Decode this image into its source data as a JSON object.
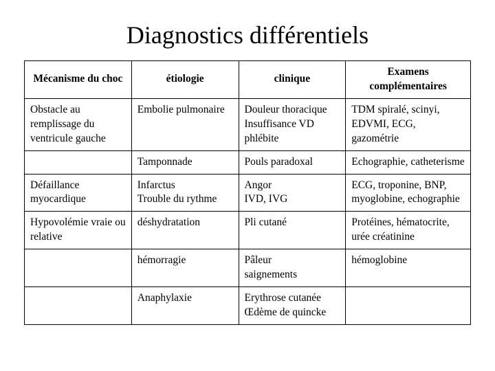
{
  "title": "Diagnostics différentiels",
  "columns": [
    "Mécanisme du choc",
    "étiologie",
    "clinique",
    "Examens complémentaires"
  ],
  "rows": [
    {
      "c1": "Obstacle au remplissage du ventricule gauche",
      "c2": "Embolie pulmonaire",
      "c3": [
        "Douleur thoracique",
        "Insuffisance VD",
        "phlébite"
      ],
      "c4": "TDM spiralé, scinyi, EDVMI, ECG, gazométrie"
    },
    {
      "c1": "",
      "c2": "Tamponnade",
      "c3": "Pouls paradoxal",
      "c4": "Echographie, catheterisme"
    },
    {
      "c1": "Défaillance myocardique",
      "c2": [
        "Infarctus",
        "Trouble du rythme"
      ],
      "c3": [
        "Angor",
        "IVD, IVG"
      ],
      "c4": "ECG, troponine, BNP, myoglobine, echographie"
    },
    {
      "c1": "Hypovolémie vraie ou relative",
      "c2": "déshydratation",
      "c3": "Pli cutané",
      "c4": "Protéines, hématocrite, urée créatinine"
    },
    {
      "c1": "",
      "c2": "hémorragie",
      "c3": [
        "Pâleur",
        "saignements"
      ],
      "c4": "hémoglobine"
    },
    {
      "c1": "",
      "c2": "Anaphylaxie",
      "c3": [
        "Erythrose cutanée",
        "Œdème de quincke"
      ],
      "c4": ""
    }
  ],
  "styles": {
    "background_color": "#ffffff",
    "text_color": "#000000",
    "border_color": "#000000",
    "title_fontsize": 36,
    "cell_fontsize": 15.5,
    "font_family": "Times New Roman"
  }
}
